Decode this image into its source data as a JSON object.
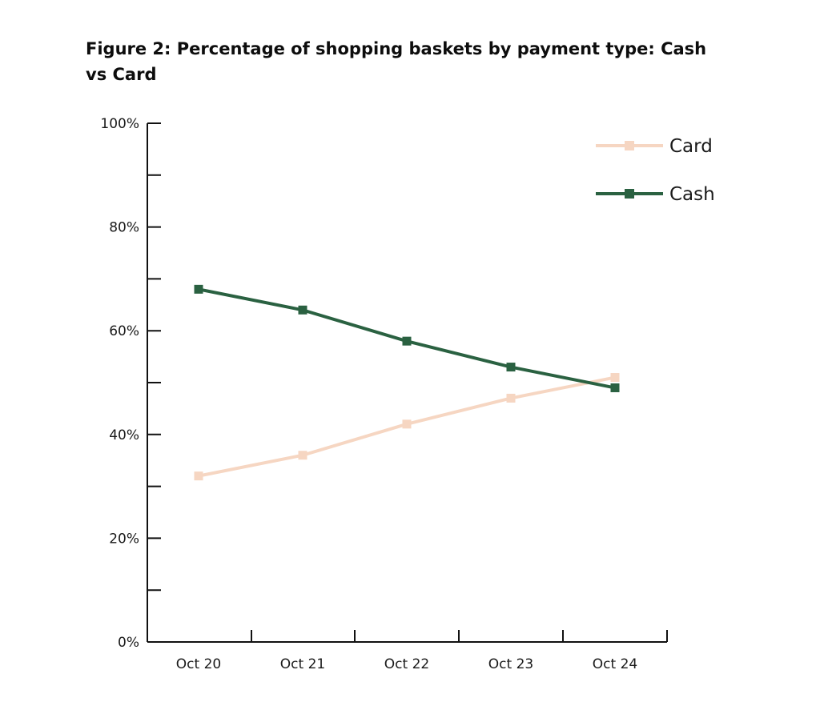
{
  "chart_data": {
    "type": "line",
    "title": "Figure 2: Percentage of shopping baskets by payment type: Cash vs Card",
    "xlabel": "",
    "ylabel": "",
    "categories": [
      "Oct 20",
      "Oct 21",
      "Oct 22",
      "Oct 23",
      "Oct 24"
    ],
    "ylim": [
      0,
      100
    ],
    "y_ticks": [
      0,
      20,
      40,
      60,
      80,
      100
    ],
    "y_tick_labels": [
      "0%",
      "20%",
      "40%",
      "60%",
      "80%",
      "100%"
    ],
    "y_minor_ticks": [
      10,
      30,
      50,
      70,
      90
    ],
    "grid": false,
    "legend_position": "top-right",
    "series": [
      {
        "name": "Card",
        "color": "#f6d6c2",
        "marker": "square",
        "values": [
          32,
          36,
          42,
          47,
          51
        ]
      },
      {
        "name": "Cash",
        "color": "#2a6141",
        "marker": "square",
        "values": [
          68,
          64,
          58,
          53,
          49
        ]
      }
    ]
  }
}
